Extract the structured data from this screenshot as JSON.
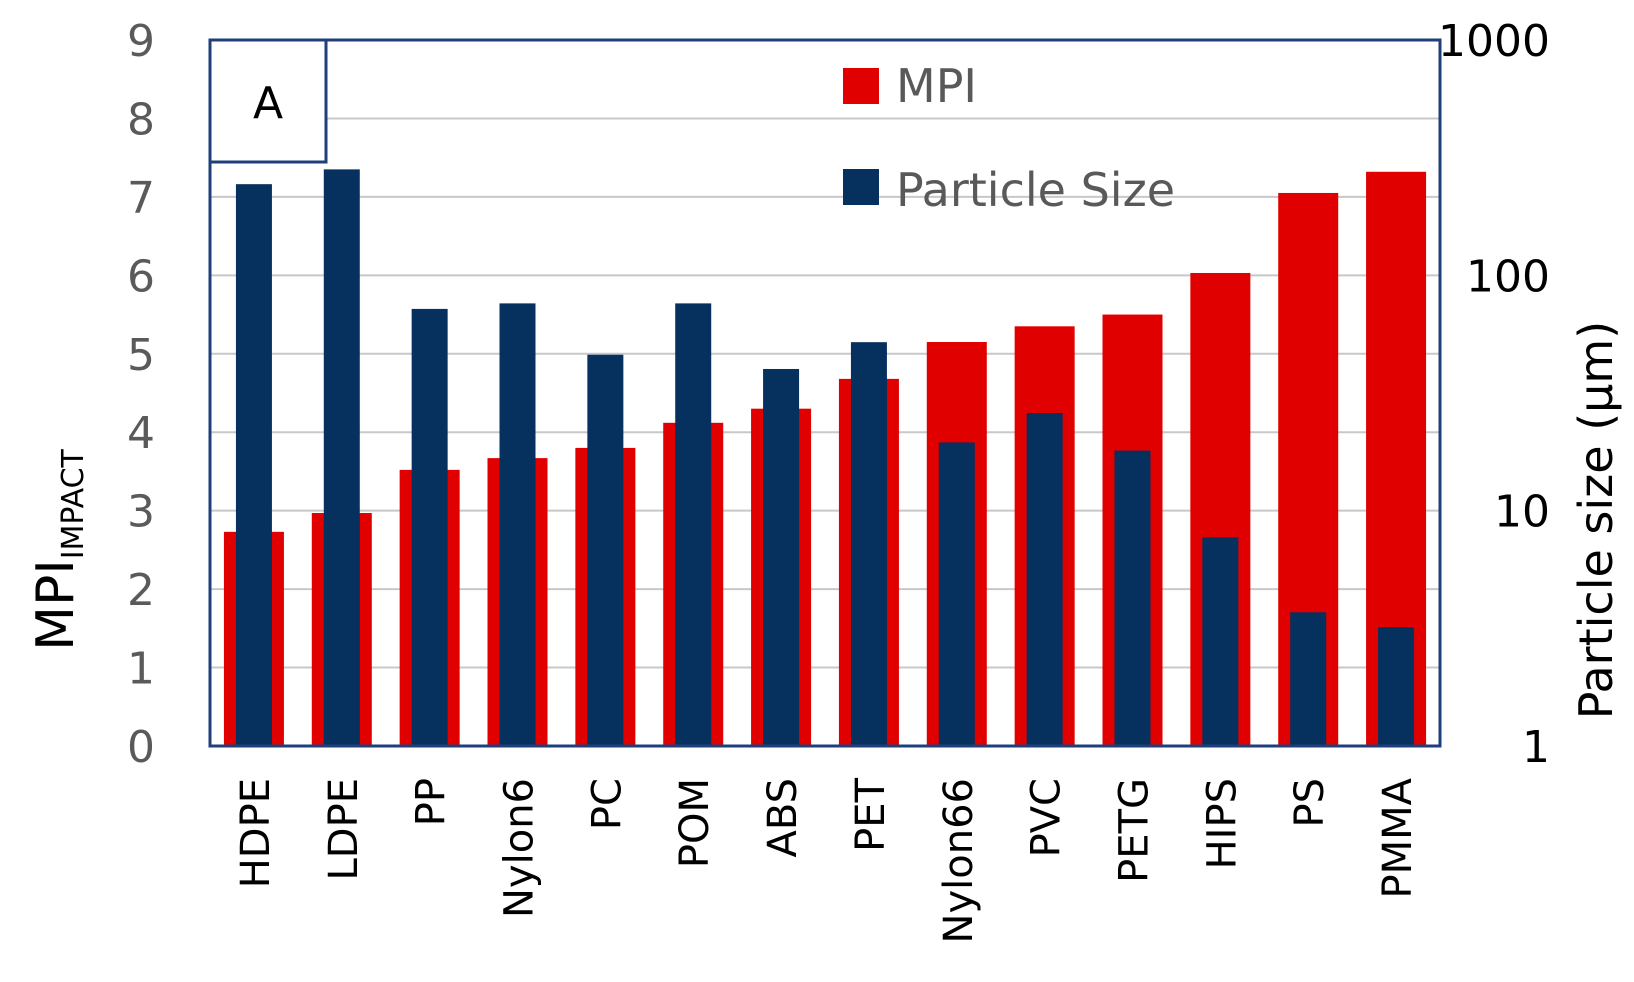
{
  "panel_label": "A",
  "colors": {
    "mpi": "#e00000",
    "particle_size": "#06305e",
    "frame": "#1f3f7a",
    "grid": "#c8c8c8",
    "tick_text": "#5a5a5a"
  },
  "chart_data": {
    "type": "bar",
    "categories": [
      "HDPE",
      "LDPE",
      "PP",
      "Nylon6",
      "PC",
      "POM",
      "ABS",
      "PET",
      "Nylon66",
      "PVC",
      "PETG",
      "HIPS",
      "PS",
      "PMMA"
    ],
    "ylabel_main": "MPI",
    "ylabel_sub": "IMPACT",
    "y2label": "Particle size (μm)",
    "ylim": [
      0,
      9
    ],
    "y_ticks": [
      "0",
      "1",
      "2",
      "3",
      "4",
      "5",
      "6",
      "7",
      "8",
      "9"
    ],
    "y2lim": [
      1,
      1000
    ],
    "y2_scale": "log",
    "y2_ticks": [
      "1",
      "10",
      "100",
      "1000"
    ],
    "legend_position": "top-right",
    "grid": true,
    "series": [
      {
        "name": "MPI",
        "axis": "left",
        "values": [
          2.73,
          2.97,
          3.52,
          3.67,
          3.8,
          4.12,
          4.3,
          4.68,
          5.15,
          5.35,
          5.5,
          6.03,
          7.05,
          7.32
        ]
      },
      {
        "name": "Particle Size",
        "axis": "right",
        "values": [
          244,
          282,
          72,
          76,
          46,
          76,
          40,
          52,
          19.5,
          26,
          18,
          7.7,
          3.7,
          3.2
        ]
      }
    ]
  }
}
